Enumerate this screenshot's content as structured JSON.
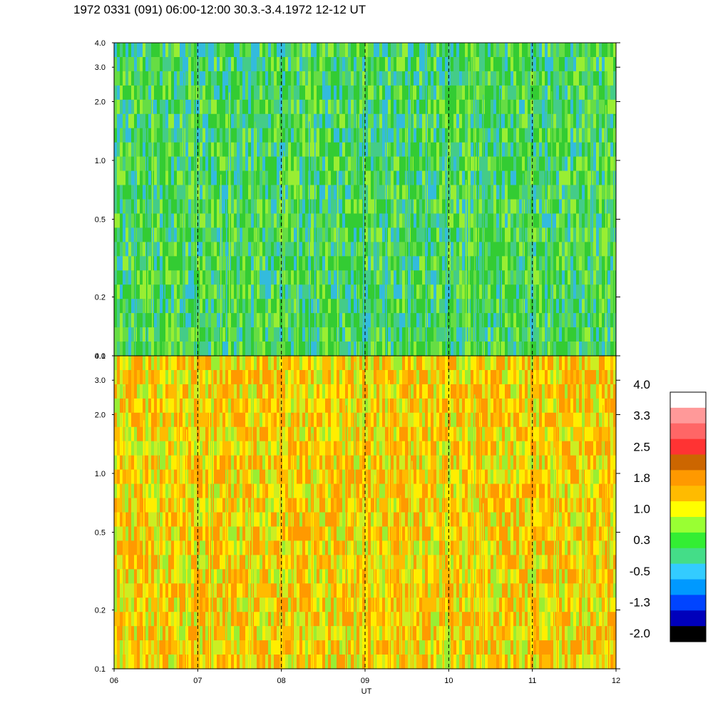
{
  "title": "1972 0331 (091) 06:00-12:00 30.3.-3.4.1972  12-12 UT",
  "chart_data": [
    {
      "type": "heatmap",
      "panel": "top",
      "x_ticks": [
        "06",
        "07",
        "08",
        "09",
        "10",
        "11",
        "12"
      ],
      "xlim": [
        6,
        12
      ],
      "y_ticks": [
        "0.1",
        "0.2",
        "0.5",
        "1.0",
        "2.0",
        "3.0",
        "4.0"
      ],
      "y_tick_values": [
        0.1,
        0.2,
        0.5,
        1.0,
        2.0,
        3.0,
        4.0
      ],
      "ylim": [
        0.1,
        4.0
      ],
      "y_scale": "log",
      "dashed_vertical_lines": [
        7,
        8,
        9,
        10,
        11
      ],
      "dominant_colors": [
        "#33cc33",
        "#44cc88",
        "#66dd44",
        "#99ee33",
        "#33bbdd"
      ]
    },
    {
      "type": "heatmap",
      "panel": "bottom",
      "x_ticks": [
        "06",
        "07",
        "08",
        "09",
        "10",
        "11",
        "12"
      ],
      "xlim": [
        6,
        12
      ],
      "xlabel": "UT",
      "y_ticks": [
        "0.1",
        "0.2",
        "0.5",
        "1.0",
        "2.0",
        "3.0",
        "4.0"
      ],
      "y_tick_values": [
        0.1,
        0.2,
        0.5,
        1.0,
        2.0,
        3.0,
        4.0
      ],
      "ylim": [
        0.1,
        4.0
      ],
      "y_scale": "log",
      "dashed_vertical_lines": [
        7,
        8,
        9,
        10,
        11
      ],
      "dominant_colors": [
        "#ff9900",
        "#ffbb00",
        "#ffee00",
        "#ccee22",
        "#99ee33"
      ]
    }
  ],
  "colorbar": {
    "labels": [
      "4.0",
      "3.3",
      "2.5",
      "1.8",
      "1.0",
      "0.3",
      "-0.5",
      "-1.3",
      "-2.0"
    ],
    "colors": [
      "#ffffff",
      "#ff9999",
      "#ff6666",
      "#ff3333",
      "#cc6600",
      "#ff9900",
      "#ffbb00",
      "#ffff00",
      "#99ff33",
      "#33ee33",
      "#44dd88",
      "#33ccff",
      "#0099ff",
      "#0044ff",
      "#0000bb",
      "#000000"
    ]
  }
}
